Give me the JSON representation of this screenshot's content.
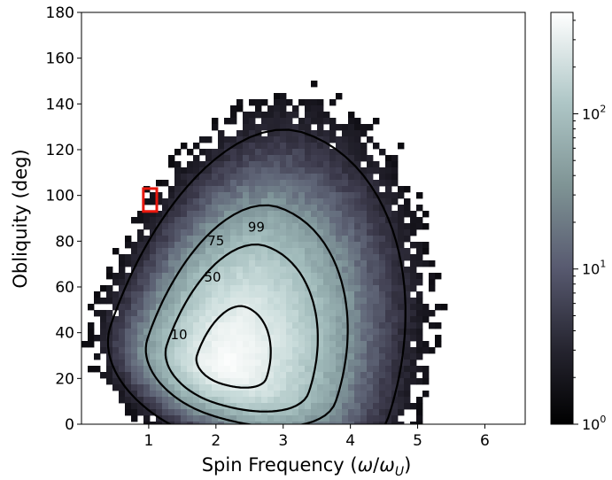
{
  "chart_data": {
    "type": "heatmap",
    "title": "",
    "xlabel": {
      "main": "Spin Frequency (",
      "omega": "ω",
      "slash": "/",
      "omega2": "ω",
      "sub": "U",
      "close": ")"
    },
    "ylabel": "Obliquity (deg)",
    "xlim": [
      0,
      6.6
    ],
    "ylim": [
      0,
      180
    ],
    "xticks": [
      1,
      2,
      3,
      4,
      5,
      6
    ],
    "yticks": [
      0,
      20,
      40,
      60,
      80,
      100,
      120,
      140,
      160,
      180
    ],
    "grid": false,
    "colormap": "bone",
    "colorbar": {
      "scale": "log",
      "range": [
        1,
        450
      ],
      "ticks": [
        {
          "base": "10",
          "exp": "0",
          "value": 1
        },
        {
          "base": "10",
          "exp": "1",
          "value": 10
        },
        {
          "base": "10",
          "exp": "2",
          "value": 100
        }
      ]
    },
    "contours": [
      {
        "label": "10",
        "label_at": [
          1.45,
          39
        ]
      },
      {
        "label": "50",
        "label_at": [
          1.95,
          64
        ]
      },
      {
        "label": "75",
        "label_at": [
          2.0,
          80
        ]
      },
      {
        "label": "99",
        "label_at": [
          2.6,
          86
        ]
      }
    ],
    "highlight_box": {
      "x": [
        0.92,
        1.12
      ],
      "y": [
        93,
        103
      ],
      "color": "#e8170d"
    }
  }
}
